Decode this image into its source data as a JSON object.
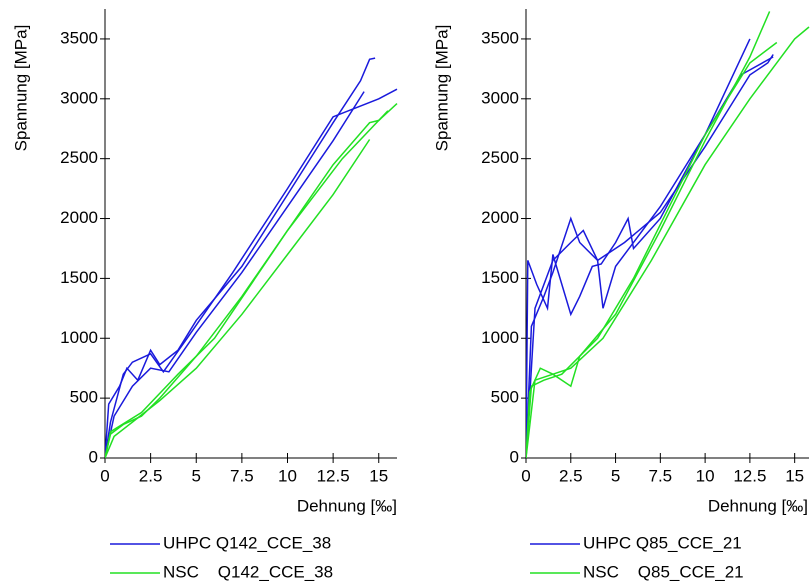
{
  "chart_data": [
    {
      "type": "line",
      "x_label": "Dehnung [‰]",
      "y_label": "Spannung [MPa]",
      "xlim": [
        0,
        16
      ],
      "ylim": [
        0,
        3750
      ],
      "xticks": [
        0,
        2.5,
        5,
        7.5,
        10,
        12.5,
        15
      ],
      "yticks": [
        0,
        500,
        1000,
        1500,
        2000,
        2500,
        3000,
        3500
      ],
      "series": [
        {
          "name": "UHPC Q142_CCE_38",
          "color": "#1a1adc",
          "curves": [
            {
              "x": [
                0,
                0.2,
                0.8,
                1.2,
                1.8,
                2.5,
                3,
                4,
                5,
                7.5,
                10,
                12.5,
                14,
                14.5,
                14.8
              ],
              "values": [
                0,
                450,
                600,
                750,
                650,
                900,
                780,
                900,
                1150,
                1600,
                2200,
                2800,
                3150,
                3330,
                3340
              ]
            },
            {
              "x": [
                0,
                0.3,
                1,
                1.5,
                2.5,
                3.2,
                4.5,
                7,
                10,
                12.5,
                15,
                16
              ],
              "values": [
                0,
                300,
                700,
                800,
                870,
                720,
                1000,
                1550,
                2250,
                2850,
                3000,
                3080
              ]
            },
            {
              "x": [
                0,
                0.5,
                1.5,
                2.5,
                3.5,
                5,
                7.5,
                10,
                12.5,
                14.2
              ],
              "values": [
                0,
                350,
                600,
                750,
                720,
                1050,
                1550,
                2100,
                2650,
                3060
              ]
            }
          ]
        },
        {
          "name": "NSC    Q142_CCE_38",
          "color": "#22e022",
          "curves": [
            {
              "x": [
                0,
                0.3,
                1,
                2,
                3,
                5,
                7.5,
                10,
                12.5,
                14.5,
                15,
                16
              ],
              "values": [
                0,
                200,
                280,
                350,
                500,
                850,
                1350,
                1900,
                2450,
                2800,
                2820,
                2960
              ]
            },
            {
              "x": [
                0,
                0.5,
                1.5,
                3,
                5,
                7.5,
                10,
                12.5,
                14.5
              ],
              "values": [
                0,
                180,
                300,
                480,
                750,
                1200,
                1700,
                2200,
                2660
              ]
            },
            {
              "x": [
                0,
                0.3,
                2,
                4,
                6,
                8,
                10,
                13,
                15.5
              ],
              "values": [
                0,
                220,
                380,
                700,
                1000,
                1450,
                1900,
                2500,
                2900
              ]
            }
          ]
        }
      ]
    },
    {
      "type": "line",
      "x_label": "Dehnung [‰]",
      "y_label": "Spannung [MPa]",
      "xlim": [
        0,
        15.8
      ],
      "ylim": [
        0,
        3750
      ],
      "xticks": [
        0,
        2.5,
        5,
        7.5,
        10,
        12.5,
        15
      ],
      "yticks": [
        0,
        500,
        1000,
        1500,
        2000,
        2500,
        3000,
        3500
      ],
      "series": [
        {
          "name": "UHPC Q85_CCE_21",
          "color": "#1a1adc",
          "curves": [
            {
              "x": [
                0,
                0.1,
                0.6,
                1.2,
                1.5,
                2.5,
                3,
                3.7,
                4.2,
                5,
                5.7,
                6,
                7.5,
                10,
                12.5
              ],
              "values": [
                0,
                1650,
                1450,
                1250,
                1700,
                1200,
                1350,
                1600,
                1620,
                1800,
                2000,
                1750,
                2000,
                2700,
                3500
              ]
            },
            {
              "x": [
                0,
                0.3,
                1,
                1.5,
                2.5,
                3,
                4,
                4.3,
                5,
                7.5,
                10,
                12,
                13.8
              ],
              "values": [
                0,
                1100,
                1350,
                1550,
                2000,
                1800,
                1650,
                1250,
                1600,
                2100,
                2700,
                3200,
                3350
              ]
            },
            {
              "x": [
                0,
                0.5,
                1.5,
                2.5,
                3.2,
                4,
                5.5,
                7.5,
                10,
                12.5,
                13.5,
                13.8
              ],
              "values": [
                0,
                1250,
                1650,
                1800,
                1900,
                1650,
                1800,
                2050,
                2600,
                3200,
                3300,
                3370
              ]
            }
          ]
        },
        {
          "name": "NSC    Q85_CCE_21",
          "color": "#22e022",
          "curves": [
            {
              "x": [
                0,
                0.2,
                0.8,
                1.5,
                2.5,
                3,
                5,
                7.5,
                10,
                12.5,
                13.6
              ],
              "values": [
                0,
                550,
                750,
                700,
                600,
                850,
                1200,
                1900,
                2650,
                3350,
                3730
              ]
            },
            {
              "x": [
                0,
                0.3,
                1,
                2,
                4,
                6,
                8,
                10,
                12.5,
                14
              ],
              "values": [
                0,
                600,
                650,
                700,
                1000,
                1500,
                2100,
                2700,
                3300,
                3470
              ]
            },
            {
              "x": [
                0,
                0.5,
                1.5,
                2.5,
                4.3,
                7,
                10,
                12.5,
                15,
                15.8
              ],
              "values": [
                0,
                650,
                700,
                750,
                1000,
                1650,
                2450,
                3000,
                3500,
                3600
              ]
            }
          ]
        }
      ]
    }
  ]
}
